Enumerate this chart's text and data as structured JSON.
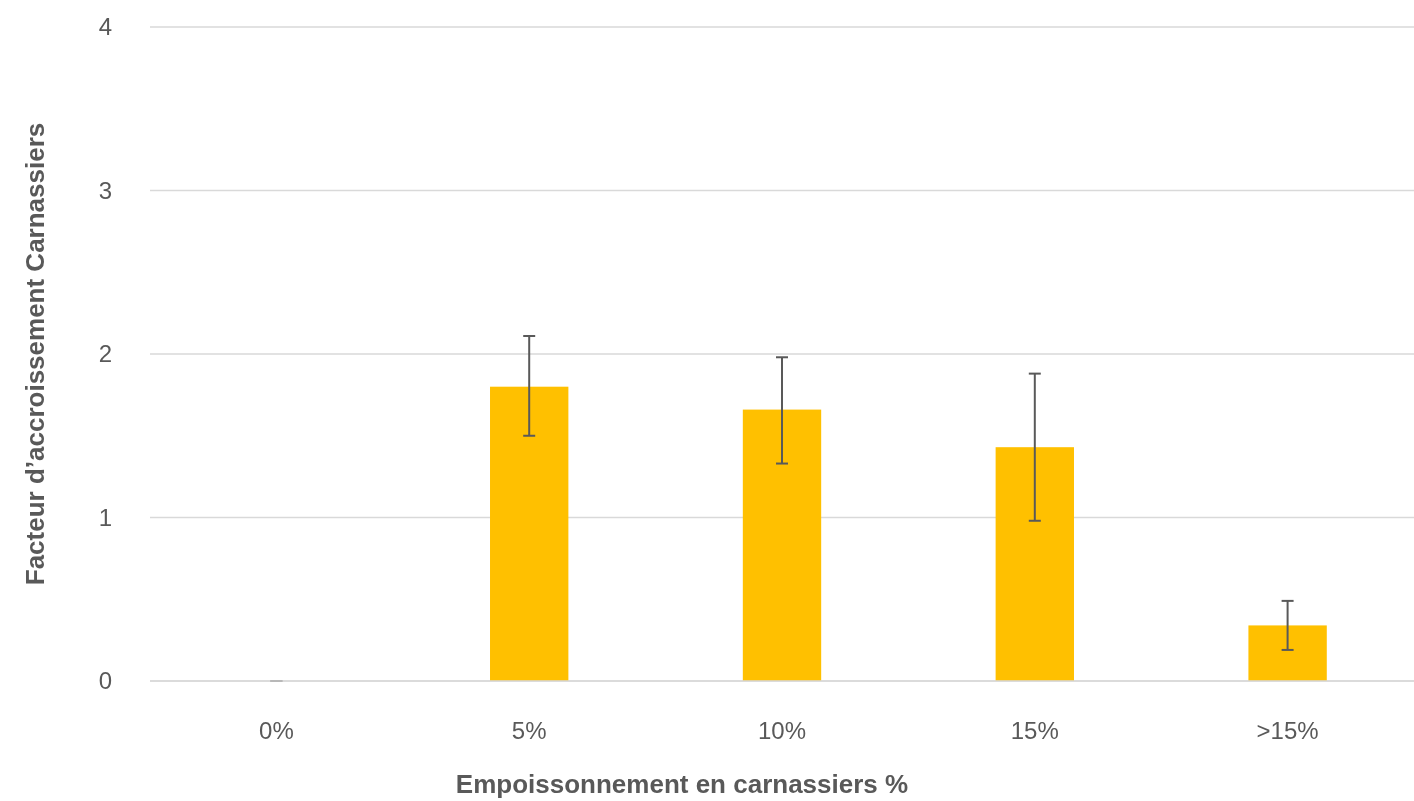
{
  "chart_data": {
    "type": "bar",
    "xlabel": "Empoissonnement en carnassiers %",
    "ylabel": "Facteur d’accroissement Carnassiers",
    "categories": [
      "0%",
      "5%",
      "10%",
      "15%",
      ">15%"
    ],
    "values": [
      0,
      1.8,
      1.66,
      1.43,
      0.34
    ],
    "errors": [
      [
        0,
        0
      ],
      [
        1.5,
        2.11
      ],
      [
        1.33,
        1.98
      ],
      [
        0.98,
        1.88
      ],
      [
        0.19,
        0.49
      ]
    ],
    "color": "#ffc000",
    "ylim": [
      0,
      4
    ],
    "yticks": [
      0,
      1,
      2,
      3,
      4
    ],
    "grid": "y"
  }
}
